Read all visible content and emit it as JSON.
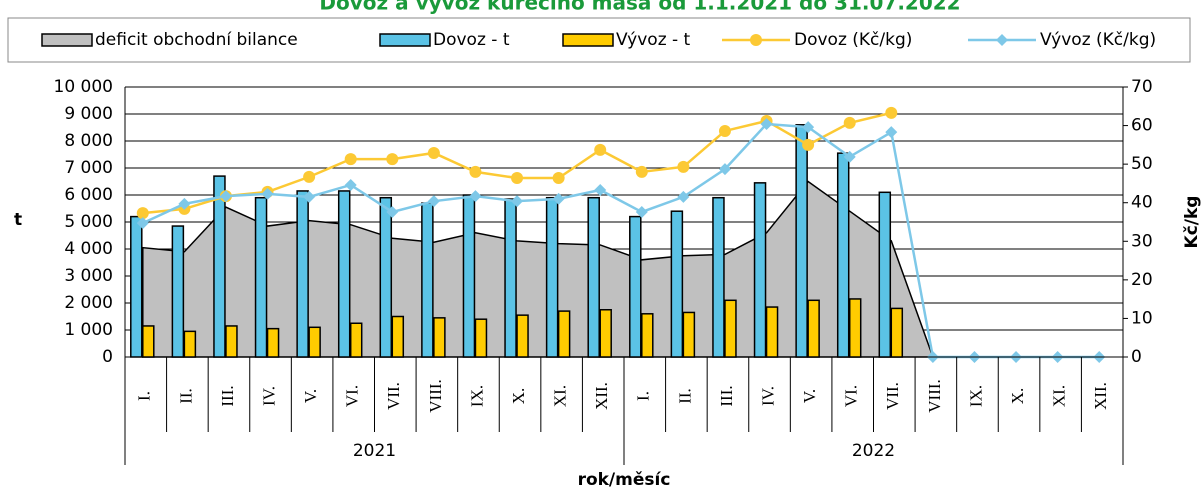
{
  "chart_data": {
    "type": "combo",
    "title": "Dovoz a vývoz kuřecího masa od 1.1.2021 do 31.07.2022",
    "y_label": "t",
    "y2_label": "Kč/kg",
    "x_label": "rok/měsíc",
    "categories": [
      "I.",
      "II.",
      "III.",
      "IV.",
      "V.",
      "VI.",
      "VII.",
      "VIII.",
      "IX.",
      "X.",
      "XI.",
      "XII.",
      "I.",
      "II.",
      "III.",
      "IV.",
      "V.",
      "VI.",
      "VII.",
      "VIII.",
      "IX.",
      "X.",
      "XI.",
      "XII."
    ],
    "category_groups": [
      "2021",
      "2022"
    ],
    "ylim": [
      0,
      10000
    ],
    "yticks": [
      0,
      {
        "value": 1000,
        "label": "1 000"
      },
      {
        "value": 2000,
        "label": "2 000"
      },
      {
        "value": 3000,
        "label": "3 000"
      },
      {
        "value": 4000,
        "label": "4 000"
      },
      {
        "value": 5000,
        "label": "5 000"
      },
      {
        "value": 6000,
        "label": "6 000"
      },
      {
        "value": 7000,
        "label": "7 000"
      },
      {
        "value": 8000,
        "label": "8 000"
      },
      {
        "value": 9000,
        "label": "9 000"
      },
      {
        "value": 10000,
        "label": "10 000"
      }
    ],
    "y2lim": [
      0,
      70
    ],
    "y2ticks": [
      0,
      10,
      20,
      30,
      40,
      50,
      60,
      70
    ],
    "grid": true,
    "series": [
      {
        "name": "deficit obchodní bilance",
        "type": "area",
        "color": "#c0c0c0",
        "values": [
          4050,
          3900,
          5550,
          4850,
          5050,
          4900,
          4400,
          4250,
          4600,
          4300,
          4200,
          4150,
          3600,
          3750,
          3800,
          4600,
          6500,
          5400,
          4300,
          0,
          0,
          0,
          0,
          0
        ]
      },
      {
        "name": "Dovoz - t",
        "type": "bar",
        "color": "#5bc3e6",
        "values": [
          5200,
          4850,
          6700,
          5900,
          6150,
          6150,
          5900,
          5700,
          6000,
          5850,
          5900,
          5900,
          5200,
          5400,
          5900,
          6450,
          8600,
          7550,
          6100,
          0,
          0,
          0,
          0,
          0
        ]
      },
      {
        "name": "Vývoz - t",
        "type": "bar",
        "color": "#ffcc00",
        "values": [
          1150,
          950,
          1150,
          1050,
          1100,
          1250,
          1500,
          1450,
          1400,
          1550,
          1700,
          1750,
          1600,
          1650,
          2100,
          1850,
          2100,
          2150,
          1800,
          0,
          0,
          0,
          0,
          0
        ]
      },
      {
        "name": "Dovoz (Kč/kg)",
        "type": "line",
        "marker": "circle",
        "axis": "y2",
        "color": "#fcc934",
        "values": [
          37.3,
          38.4,
          41.7,
          42.8,
          46.7,
          51.3,
          51.3,
          52.9,
          48,
          46.4,
          46.4,
          53.7,
          48,
          49.3,
          58.6,
          61.2,
          55,
          60.7,
          63.3,
          null,
          null,
          null,
          null,
          null
        ]
      },
      {
        "name": "Vývoz (Kč/kg)",
        "type": "line",
        "marker": "diamond",
        "axis": "y2",
        "color": "#7ec8e8",
        "values": [
          34.7,
          39.7,
          41.7,
          42.3,
          41.5,
          44.6,
          37.6,
          40.4,
          41.7,
          40.4,
          41,
          43.3,
          37.6,
          41.5,
          48.7,
          60.4,
          59.6,
          51.9,
          58.3,
          0,
          0,
          0,
          0,
          0
        ]
      }
    ]
  }
}
